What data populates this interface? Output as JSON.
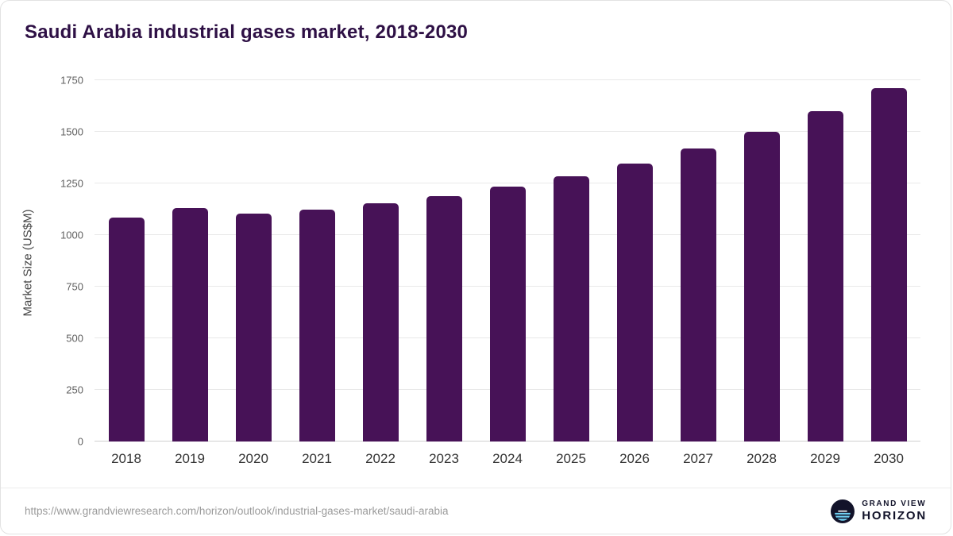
{
  "title": "Saudi Arabia industrial gases market, 2018-2030",
  "chart_data": {
    "type": "bar",
    "categories": [
      "2018",
      "2019",
      "2020",
      "2021",
      "2022",
      "2023",
      "2024",
      "2025",
      "2026",
      "2027",
      "2028",
      "2029",
      "2030"
    ],
    "values": [
      1085,
      1130,
      1105,
      1125,
      1155,
      1190,
      1235,
      1285,
      1345,
      1420,
      1500,
      1600,
      1710
    ],
    "title": "Saudi Arabia industrial gases market, 2018-2030",
    "xlabel": "",
    "ylabel": "Market Size (US$M)",
    "ylim": [
      0,
      1750
    ],
    "yticks": [
      0,
      250,
      500,
      750,
      1000,
      1250,
      1500,
      1750
    ],
    "grid": true,
    "legend": false,
    "bar_color": "#471257"
  },
  "colors": {
    "accent": "#471257",
    "title_text": "#2e1045",
    "gridline": "#e9e9e9",
    "logo_blue": "#6fd0f2",
    "logo_dark": "#12132a"
  },
  "footer": {
    "source_url": "https://www.grandviewresearch.com/horizon/outlook/industrial-gases-market/saudi-arabia",
    "logo": {
      "line1": "GRAND VIEW",
      "line2": "HORIZON"
    }
  }
}
